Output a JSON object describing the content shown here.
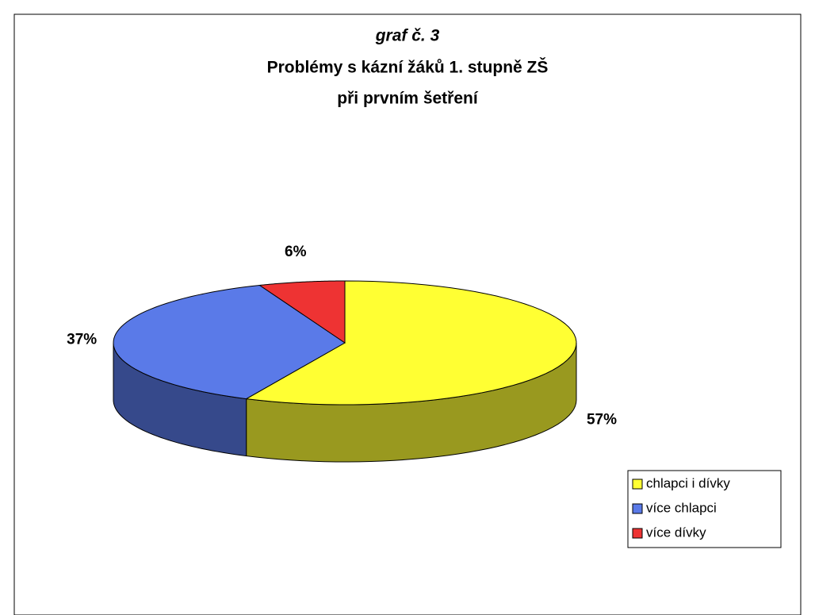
{
  "chart_data": {
    "type": "pie",
    "title": "graf č. 3",
    "subtitle": [
      "Problémy s kázní žáků 1. stupně ZŠ",
      "při prvním šetření"
    ],
    "categories": [
      "chlapci i dívky",
      "více chlapci",
      "více dívky"
    ],
    "values": [
      57,
      37,
      6
    ],
    "value_labels": [
      "57%",
      "37%",
      "6%"
    ],
    "colors": [
      "#ffff33",
      "#5a7ae8",
      "#ee3333"
    ],
    "legend": "right"
  }
}
